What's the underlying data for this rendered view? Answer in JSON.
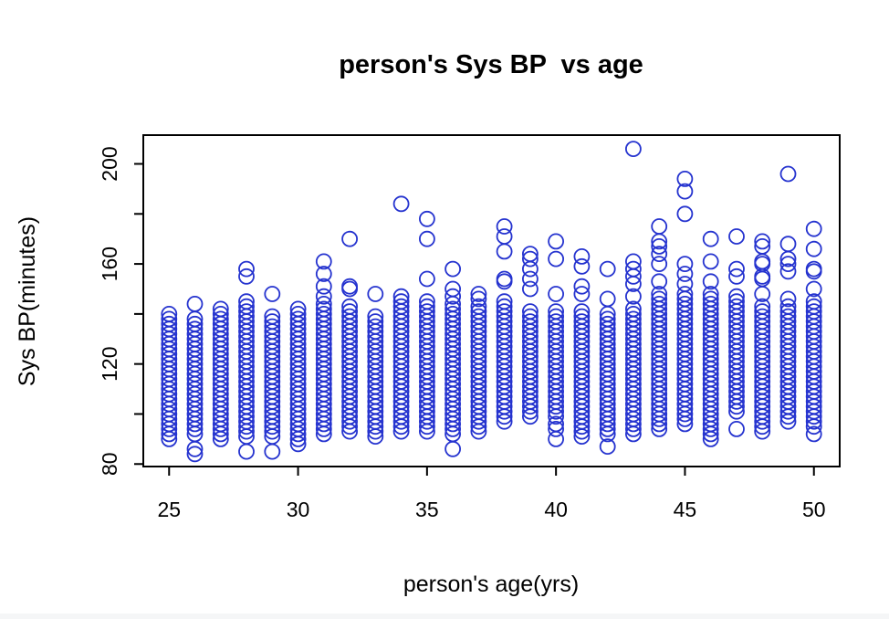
{
  "title": "person's Sys BP  vs age",
  "chart_data": {
    "type": "scatter",
    "title": "person's Sys BP  vs age",
    "xlabel": "person's age(yrs)",
    "ylabel": "Sys BP(minutes)",
    "xlim": [
      24,
      51
    ],
    "ylim": [
      79,
      211.5
    ],
    "xticks": [
      25,
      30,
      35,
      40,
      45,
      50
    ],
    "yticks": [
      80,
      100,
      120,
      140,
      160,
      180,
      200
    ],
    "ytick_labeled": [
      80,
      120,
      160,
      200
    ],
    "grid": false,
    "legend": "none",
    "point_style": {
      "shape": "open-circle",
      "color": "#2533cf",
      "radius_px": 8,
      "stroke_px": 1.8
    },
    "axis_color": "#000000",
    "background_color": "#ffffff",
    "dense_step": 2,
    "columns": [
      {
        "age": 25,
        "dense": [
          90,
          140
        ],
        "above": [],
        "below": []
      },
      {
        "age": 26,
        "dense": [
          92,
          138
        ],
        "above": [
          144
        ],
        "below": [
          84,
          86
        ]
      },
      {
        "age": 27,
        "dense": [
          90,
          142
        ],
        "above": [],
        "below": []
      },
      {
        "age": 28,
        "dense": [
          91,
          146
        ],
        "above": [
          155,
          158
        ],
        "below": [
          85
        ]
      },
      {
        "age": 29,
        "dense": [
          91,
          139
        ],
        "above": [
          148
        ],
        "below": [
          85
        ]
      },
      {
        "age": 30,
        "dense": [
          88,
          143
        ],
        "above": [],
        "below": []
      },
      {
        "age": 31,
        "dense": [
          92,
          144
        ],
        "above": [
          147,
          151,
          156,
          161
        ],
        "below": []
      },
      {
        "age": 32,
        "dense": [
          93,
          143
        ],
        "above": [
          150,
          151,
          170
        ],
        "below": []
      },
      {
        "age": 33,
        "dense": [
          91,
          140
        ],
        "above": [
          148
        ],
        "below": []
      },
      {
        "age": 34,
        "dense": [
          93,
          143
        ],
        "above": [
          145,
          147,
          184
        ],
        "below": []
      },
      {
        "age": 35,
        "dense": [
          93,
          146
        ],
        "above": [
          154,
          170,
          178
        ],
        "below": []
      },
      {
        "age": 36,
        "dense": [
          92,
          144
        ],
        "above": [
          147,
          150,
          158
        ],
        "below": [
          86
        ]
      },
      {
        "age": 37,
        "dense": [
          93,
          144
        ],
        "above": [
          146,
          148
        ],
        "below": []
      },
      {
        "age": 38,
        "dense": [
          97,
          145
        ],
        "above": [
          153,
          154,
          165,
          171,
          175
        ],
        "below": []
      },
      {
        "age": 39,
        "dense": [
          99,
          142
        ],
        "above": [
          150,
          154,
          158,
          162,
          164
        ],
        "below": []
      },
      {
        "age": 40,
        "dense": [
          99,
          141
        ],
        "above": [
          148,
          162,
          169
        ],
        "below": [
          90,
          94,
          96
        ]
      },
      {
        "age": 41,
        "dense": [
          91,
          142
        ],
        "above": [
          148,
          151,
          159,
          163
        ],
        "below": []
      },
      {
        "age": 42,
        "dense": [
          92,
          141
        ],
        "above": [
          146,
          158
        ],
        "below": [
          87
        ]
      },
      {
        "age": 43,
        "dense": [
          92,
          143
        ],
        "above": [
          147,
          152,
          155,
          158,
          161,
          206
        ],
        "below": []
      },
      {
        "age": 44,
        "dense": [
          94,
          149
        ],
        "above": [
          153,
          160,
          164,
          167,
          169,
          175
        ],
        "below": []
      },
      {
        "age": 45,
        "dense": [
          96,
          148
        ],
        "above": [
          152,
          156,
          160,
          180,
          189,
          194
        ],
        "below": []
      },
      {
        "age": 46,
        "dense": [
          92,
          148
        ],
        "above": [
          153,
          161,
          170
        ],
        "below": [
          90
        ]
      },
      {
        "age": 47,
        "dense": [
          101,
          148
        ],
        "above": [
          155,
          158,
          171
        ],
        "below": [
          94
        ]
      },
      {
        "age": 48,
        "dense": [
          93,
          144
        ],
        "above": [
          148,
          154,
          155,
          160,
          161,
          167,
          169
        ],
        "below": []
      },
      {
        "age": 49,
        "dense": [
          97,
          143
        ],
        "above": [
          146,
          157,
          160,
          162,
          168,
          196
        ],
        "below": []
      },
      {
        "age": 50,
        "dense": [
          95,
          145
        ],
        "above": [
          150,
          157,
          158,
          166,
          174
        ],
        "below": [
          92
        ]
      }
    ]
  }
}
